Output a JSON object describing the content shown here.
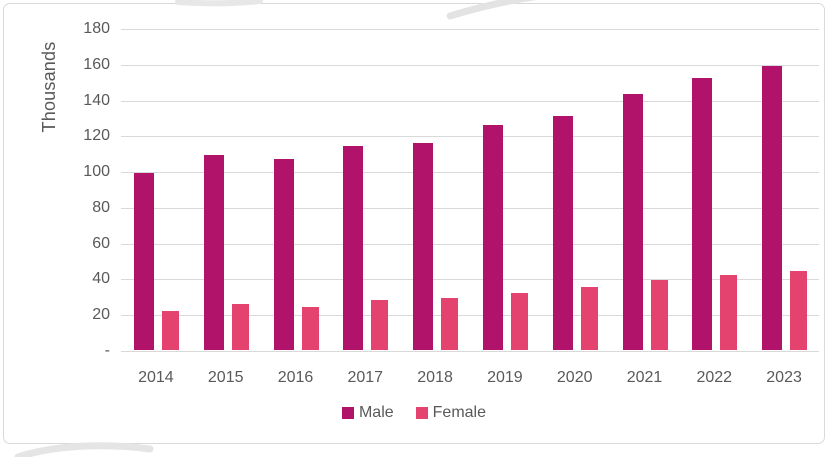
{
  "chart_data": {
    "type": "bar",
    "title": "",
    "xlabel": "",
    "ylabel": "Thousands",
    "categories": [
      "2014",
      "2015",
      "2016",
      "2017",
      "2018",
      "2019",
      "2020",
      "2021",
      "2022",
      "2023"
    ],
    "series": [
      {
        "name": "Male",
        "color": "#B1136A",
        "values": [
          99,
          109,
          107,
          114,
          116,
          126,
          131,
          143,
          152,
          159
        ]
      },
      {
        "name": "Female",
        "color": "#E4436F",
        "values": [
          22,
          26,
          24,
          28,
          29,
          32,
          35,
          39,
          42,
          44
        ]
      }
    ],
    "ylim": [
      0,
      180
    ],
    "y_tick_step": 20,
    "y_tick_labels": [
      "-",
      "20",
      "40",
      "60",
      "80",
      "100",
      "120",
      "140",
      "160",
      "180"
    ],
    "grid": true,
    "gridline_color": "#d9d9d9",
    "axis_text_color": "#595959",
    "legend_position": "bottom",
    "frame_border_color": "#d9d9d9"
  }
}
